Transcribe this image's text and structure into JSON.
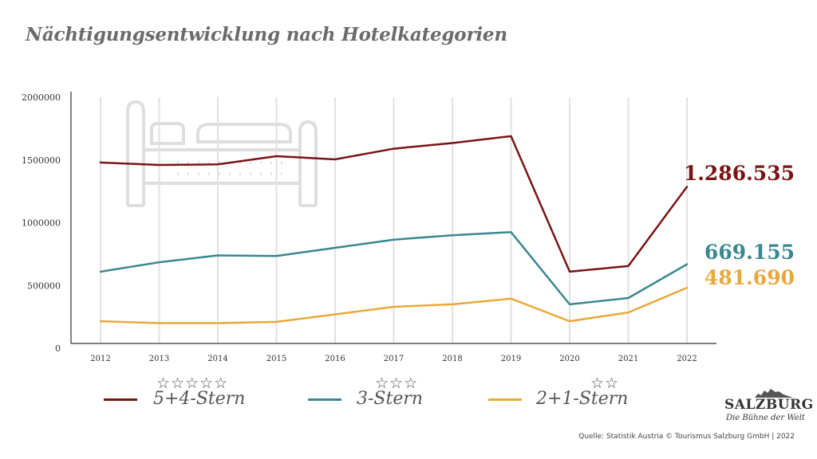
{
  "title": "Nächtigungsentwicklung nach Hotelkategorien",
  "chart_data": {
    "type": "line",
    "title": "Nächtigungsentwicklung nach Hotelkategorien",
    "xlabel": "",
    "ylabel": "",
    "categories": [
      "2012",
      "2013",
      "2014",
      "2015",
      "2016",
      "2017",
      "2018",
      "2019",
      "2020",
      "2021",
      "2022"
    ],
    "y_ticks": [
      "0",
      "500000",
      "1000000",
      "1500000",
      "2000000"
    ],
    "ylim": [
      0,
      2000000
    ],
    "grid": "vertical",
    "legend_position": "bottom",
    "series": [
      {
        "name": "5+4-Stern",
        "stars": "☆☆☆☆☆",
        "color": "#7a1414",
        "values": [
          1480000,
          1460000,
          1465000,
          1530000,
          1505000,
          1590000,
          1635000,
          1690000,
          610000,
          655000,
          1286535
        ],
        "end_label": "1.286.535"
      },
      {
        "name": "3-Stern",
        "stars": "☆☆☆",
        "color": "#3a8891",
        "values": [
          610000,
          685000,
          740000,
          735000,
          800000,
          865000,
          900000,
          925000,
          350000,
          400000,
          669155
        ],
        "end_label": "669.155"
      },
      {
        "name": "2+1-Stern",
        "stars": "☆☆",
        "color": "#eaa83a",
        "values": [
          215000,
          200000,
          200000,
          210000,
          270000,
          330000,
          350000,
          395000,
          215000,
          285000,
          481690
        ],
        "end_label": "481.690"
      }
    ]
  },
  "logo": {
    "name": "SALZBURG",
    "tagline": "Die Bühne der Welt"
  },
  "source": "Quelle: Statistik Austria © Tourismus Salzburg GmbH | 2022"
}
